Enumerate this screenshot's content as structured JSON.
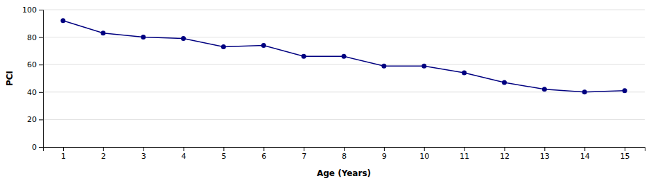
{
  "chart_data": {
    "type": "line",
    "xlabel": "Age (Years)",
    "ylabel": "PCI",
    "x": [
      1,
      2,
      3,
      4,
      5,
      6,
      7,
      8,
      9,
      10,
      11,
      12,
      13,
      14,
      15
    ],
    "values": [
      92,
      83,
      80,
      79,
      73,
      74,
      66,
      66,
      59,
      59,
      54,
      47,
      42,
      40,
      41
    ],
    "color": "#000080",
    "marker": "circle",
    "xlim": [
      0.5,
      15.5
    ],
    "ylim": [
      0,
      100
    ],
    "xticks": [
      1,
      2,
      3,
      4,
      5,
      6,
      7,
      8,
      9,
      10,
      11,
      12,
      13,
      14,
      15
    ],
    "yticks": [
      0,
      20,
      40,
      60,
      80,
      100
    ],
    "grid": true
  }
}
